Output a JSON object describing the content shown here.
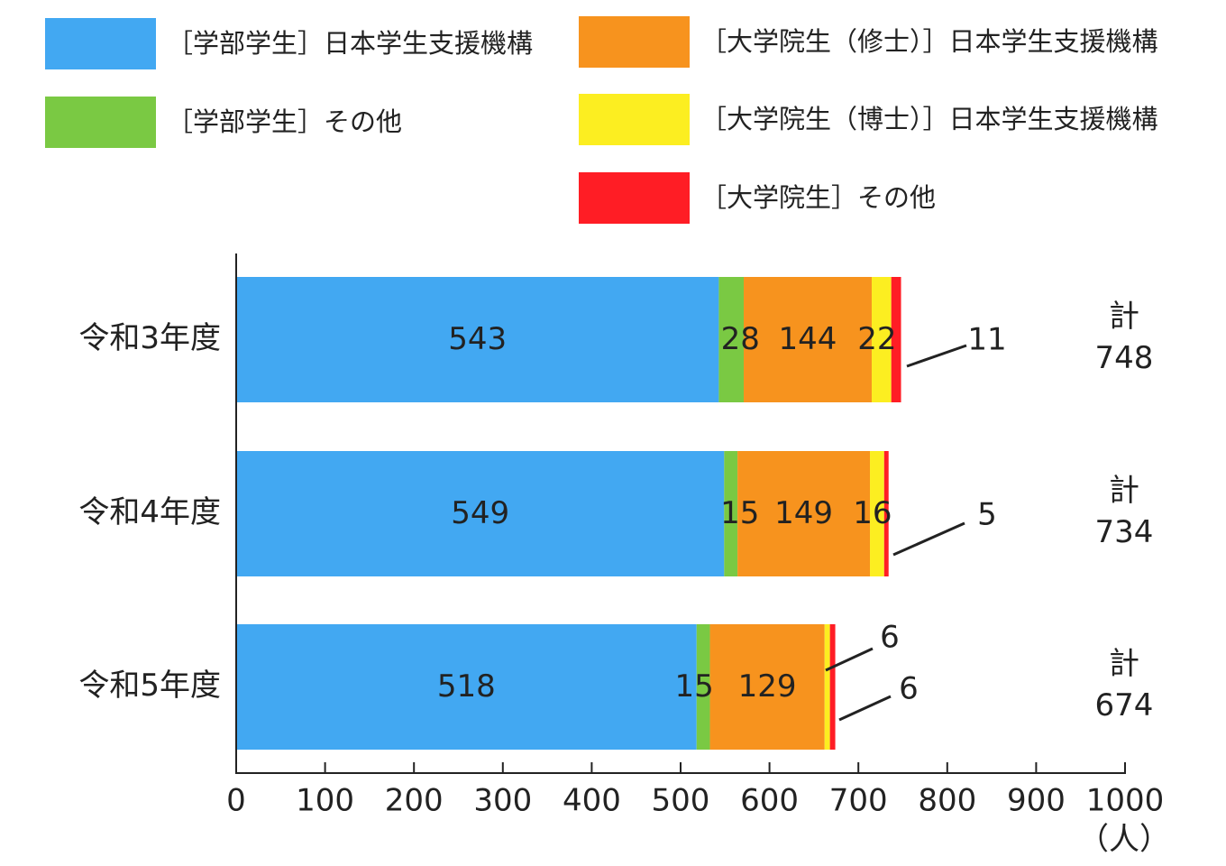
{
  "chart_data": {
    "type": "bar",
    "orientation": "horizontal",
    "stacked": true,
    "categories": [
      "令和3年度",
      "令和4年度",
      "令和5年度"
    ],
    "series": [
      {
        "name": "［学部学生］日本学生支援機構",
        "color": "#42A8F2",
        "values": [
          543,
          549,
          518
        ]
      },
      {
        "name": "［学部学生］その他",
        "color": "#7AC943",
        "values": [
          28,
          15,
          15
        ]
      },
      {
        "name": "［大学院生（修士）］日本学生支援機構",
        "color": "#F7931E",
        "values": [
          144,
          149,
          129
        ]
      },
      {
        "name": "［大学院生（博士）］日本学生支援機構",
        "color": "#FCEE21",
        "values": [
          22,
          16,
          6
        ]
      },
      {
        "name": "［大学院生］その他",
        "color": "#FF1D25",
        "values": [
          11,
          5,
          6
        ]
      }
    ],
    "data_labels": [
      [
        "543",
        "28",
        "144",
        "22",
        "11"
      ],
      [
        "549",
        "15",
        "149",
        "16",
        "5"
      ],
      [
        "518",
        "15",
        "129",
        "6",
        "6"
      ]
    ],
    "totals_prefix": "計",
    "totals": [
      "748",
      "734",
      "674"
    ],
    "xlim": [
      0,
      1000
    ],
    "xticks": [
      "0",
      "100",
      "200",
      "300",
      "400",
      "500",
      "600",
      "700",
      "800",
      "900",
      "1000"
    ],
    "xunit": "（人）",
    "legend_position": "top",
    "grid": false
  }
}
